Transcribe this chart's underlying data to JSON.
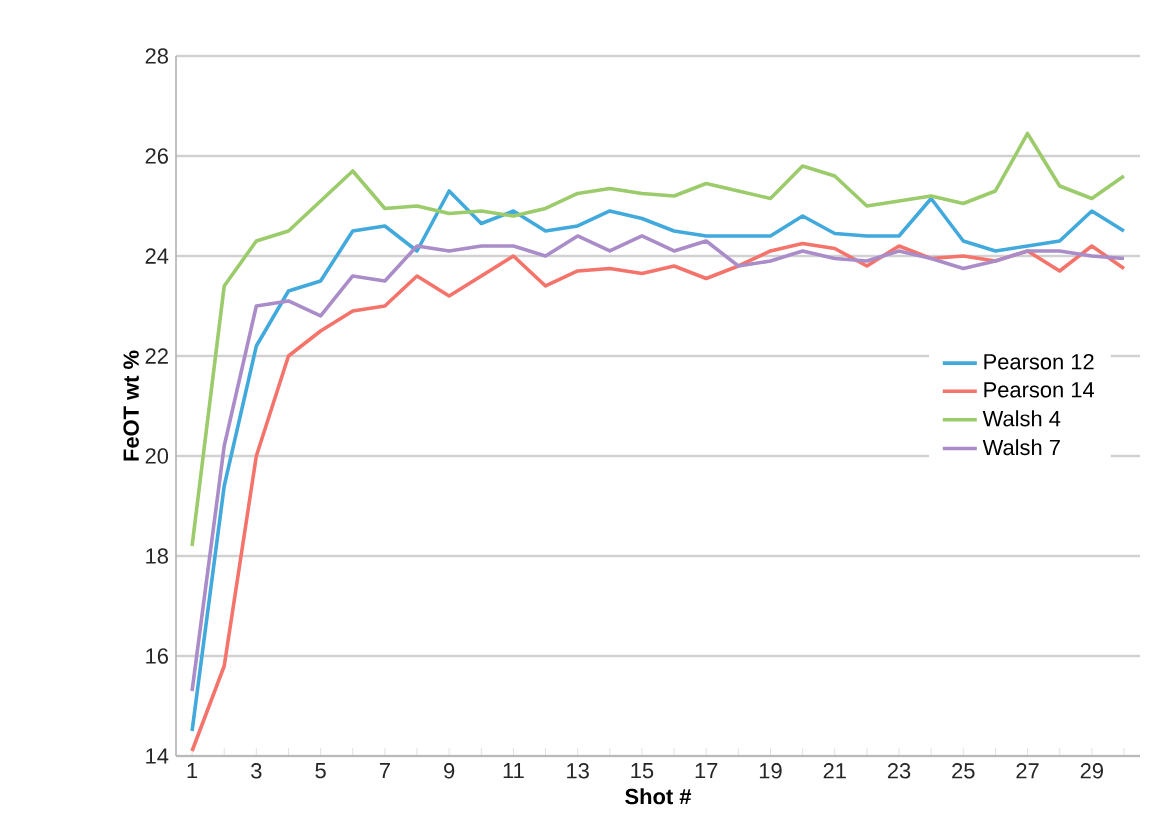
{
  "chart_data": {
    "type": "line",
    "xlabel": "Shot #",
    "ylabel": "FeOT wt %",
    "categories": [
      "1",
      null,
      "3",
      null,
      "5",
      null,
      "7",
      null,
      "9",
      null,
      "11",
      null,
      "13",
      null,
      "15",
      null,
      "17",
      null,
      "19",
      null,
      "21",
      null,
      "23",
      null,
      "25",
      null,
      "27",
      null,
      "29",
      null
    ],
    "ylim": [
      14,
      28
    ],
    "yticks": [
      14,
      16,
      18,
      20,
      22,
      24,
      26,
      28
    ],
    "grid": "y",
    "legend": "right",
    "marker": "none",
    "line_style": "solid",
    "series": [
      {
        "name": "Pearson 12",
        "color": "#41a9dc",
        "values": [
          14.5,
          19.4,
          22.2,
          23.3,
          23.5,
          24.5,
          24.6,
          24.1,
          25.3,
          24.65,
          24.9,
          24.5,
          24.6,
          24.9,
          24.75,
          24.5,
          24.4,
          24.4,
          24.4,
          24.8,
          24.45,
          24.4,
          24.4,
          25.15,
          24.3,
          24.1,
          24.2,
          24.3,
          24.9,
          24.5
        ]
      },
      {
        "name": "Pearson 14",
        "color": "#f4736b",
        "values": [
          14.1,
          15.8,
          20.0,
          22.0,
          22.5,
          22.9,
          23.0,
          23.6,
          23.2,
          23.6,
          24.0,
          23.4,
          23.7,
          23.75,
          23.65,
          23.8,
          23.55,
          23.8,
          24.1,
          24.25,
          24.15,
          23.8,
          24.2,
          23.95,
          24.0,
          23.9,
          24.1,
          23.7,
          24.2,
          23.75
        ]
      },
      {
        "name": "Walsh 4",
        "color": "#9bcb6a",
        "values": [
          18.2,
          23.4,
          24.3,
          24.5,
          25.1,
          25.7,
          24.95,
          25.0,
          24.85,
          24.9,
          24.8,
          24.95,
          25.25,
          25.35,
          25.25,
          25.2,
          25.45,
          25.3,
          25.15,
          25.8,
          25.6,
          25.0,
          25.1,
          25.2,
          25.05,
          25.3,
          26.45,
          25.4,
          25.15,
          25.6
        ]
      },
      {
        "name": "Walsh 7",
        "color": "#a98cc8",
        "values": [
          15.3,
          20.2,
          23.0,
          23.1,
          22.8,
          23.6,
          23.5,
          24.2,
          24.1,
          24.2,
          24.2,
          24.0,
          24.4,
          24.1,
          24.4,
          24.1,
          24.3,
          23.8,
          23.9,
          24.1,
          23.95,
          23.9,
          24.1,
          23.95,
          23.75,
          23.9,
          24.1,
          24.1,
          24.0,
          23.95
        ]
      }
    ]
  }
}
